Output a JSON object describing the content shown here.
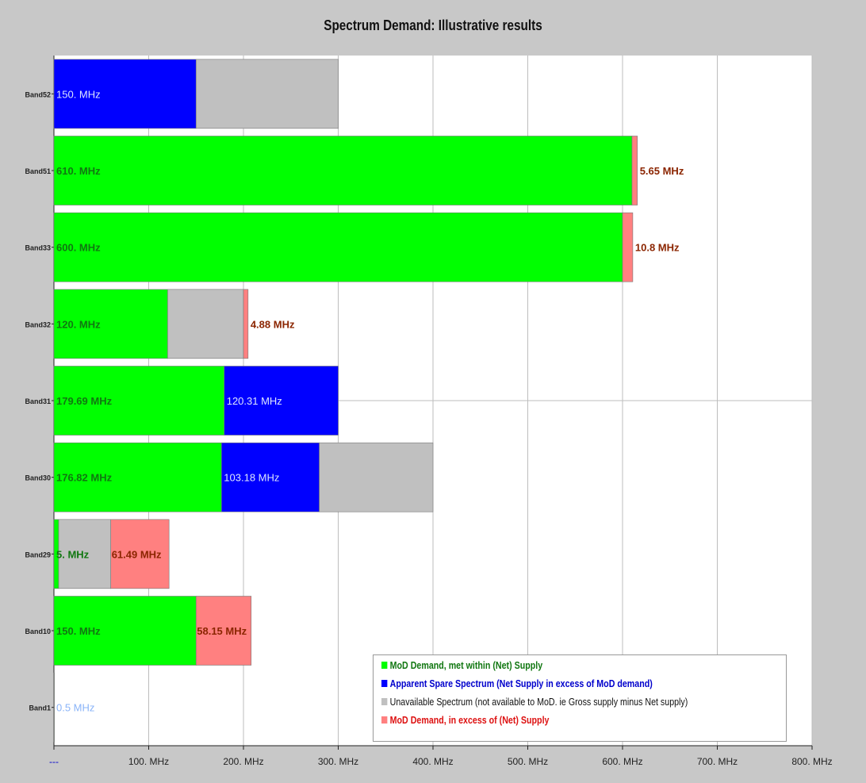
{
  "chart_data": {
    "type": "bar",
    "orientation": "horizontal",
    "stacked": true,
    "title": "Spectrum Demand: Illustrative results",
    "xlim": [
      0,
      800
    ],
    "x_ticks": [
      "---",
      "100. MHz",
      "200. MHz",
      "300. MHz",
      "400. MHz",
      "500. MHz",
      "600. MHz",
      "700. MHz",
      "800. MHz"
    ],
    "grid": true,
    "legend_position": "bottom-right",
    "categories": [
      "Band52",
      "Band51",
      "Band33",
      "Band32",
      "Band31",
      "Band30",
      "Band29",
      "Band10",
      "Band1"
    ],
    "series": [
      {
        "name": "MoD Demand, met within (Net) Supply",
        "color": "#00ff00",
        "label_color": "#117711",
        "values": [
          0,
          610,
          600,
          120,
          179.69,
          176.82,
          5,
          150,
          0.5
        ],
        "labels": [
          "",
          "610. MHz",
          "600. MHz",
          "120. MHz",
          "179.69 MHz",
          "176.82 MHz",
          "5. MHz",
          "150. MHz",
          "0.5 MHz"
        ]
      },
      {
        "name": "Apparent Spare Spectrum (Net Supply in excess of MoD demand)",
        "color": "#0000ff",
        "label_color": "#dde6ff",
        "values": [
          150,
          0,
          0,
          0,
          120.31,
          103.18,
          0,
          0,
          0
        ],
        "labels": [
          "150. MHz",
          "",
          "",
          "",
          "120.31 MHz",
          "103.18 MHz",
          "",
          "",
          ""
        ]
      },
      {
        "name": "Unavailable Spectrum (not available to MoD. ie Gross supply minus Net supply)",
        "color": "#c0c0c0",
        "label_color": "#333333",
        "values": [
          150,
          0,
          0,
          80,
          0,
          120,
          55,
          0,
          0
        ],
        "labels": [
          "",
          "",
          "",
          "",
          "",
          "",
          "",
          "",
          ""
        ]
      },
      {
        "name": "MoD Demand, in excess of (Net) Supply",
        "color": "#ff8080",
        "label_color": "#8b2500",
        "values": [
          0,
          5.65,
          10.8,
          4.88,
          0,
          0,
          61.49,
          58.15,
          0
        ],
        "labels": [
          "",
          "5.65 MHz",
          "10.8 MHz",
          "4.88 MHz",
          "",
          "",
          "61.49 MHz",
          "58.15 MHz",
          ""
        ]
      }
    ],
    "legend_text_colors": [
      "#117711",
      "#0000cc",
      "#111111",
      "#dd1111"
    ]
  }
}
